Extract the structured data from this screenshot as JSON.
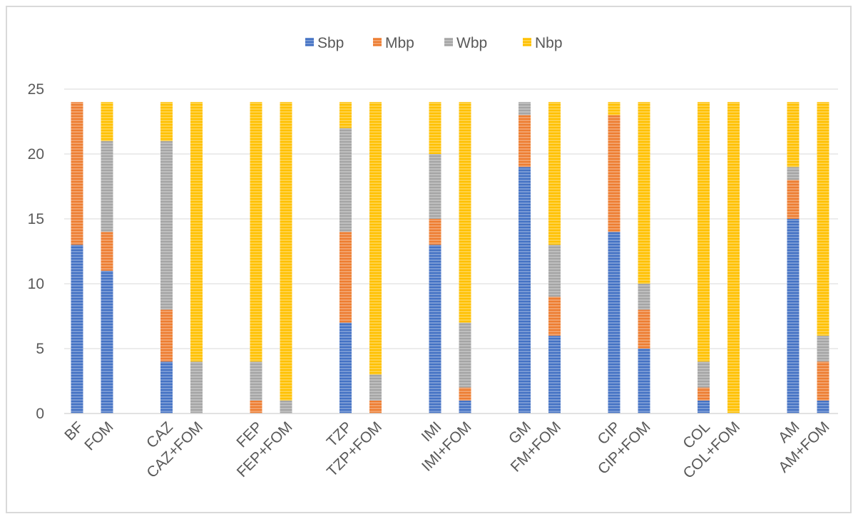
{
  "chart_data": {
    "type": "bar",
    "stacked": true,
    "title": "",
    "xlabel": "",
    "ylabel": "",
    "ylim": [
      0,
      25
    ],
    "yticks": [
      0,
      5,
      10,
      15,
      20,
      25
    ],
    "grid": true,
    "legend_position": "top",
    "categories": [
      "BF",
      "FOM",
      "CAZ",
      "CAZ+FOM",
      "FEP",
      "FEP+FOM",
      "TZP",
      "TZP+FOM",
      "IMI",
      "IMI+FOM",
      "GM",
      "FM+FOM",
      "CIP",
      "CIP+FOM",
      "COL",
      "COL+FOM",
      "AM",
      "AM+FOM"
    ],
    "series": [
      {
        "name": "Sbp",
        "color": "#4472c4",
        "values": [
          13,
          11,
          4,
          0,
          0,
          0,
          7,
          0,
          13,
          1,
          19,
          6,
          14,
          5,
          1,
          0,
          15,
          1
        ]
      },
      {
        "name": "Mbp",
        "color": "#ed7d31",
        "values": [
          11,
          3,
          4,
          0,
          1,
          0,
          7,
          1,
          2,
          1,
          4,
          3,
          9,
          3,
          1,
          0,
          3,
          3
        ]
      },
      {
        "name": "Wbp",
        "color": "#a5a5a5",
        "values": [
          0,
          7,
          13,
          4,
          3,
          1,
          8,
          2,
          5,
          5,
          1,
          4,
          0,
          2,
          2,
          0,
          1,
          2
        ]
      },
      {
        "name": "Nbp",
        "color": "#ffc000",
        "values": [
          0,
          3,
          3,
          20,
          20,
          23,
          2,
          21,
          4,
          17,
          0,
          11,
          1,
          14,
          20,
          24,
          5,
          18
        ]
      }
    ]
  }
}
